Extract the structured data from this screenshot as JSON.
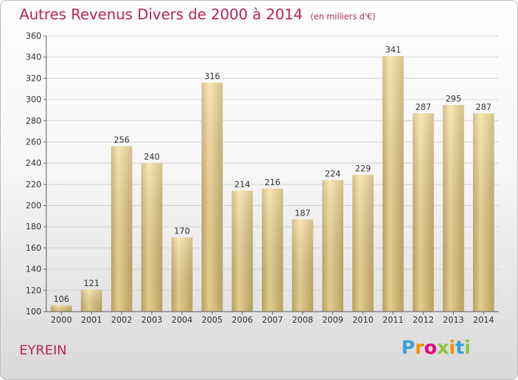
{
  "title": "Autres Revenus Divers de 2000 à 2014",
  "subtitle": "(en milliers d'€)",
  "place": "EYREIN",
  "logo": {
    "letters": [
      "P",
      "r",
      "o",
      "x",
      "i",
      "t",
      "i"
    ],
    "colors": [
      "#3aa0d8",
      "#f39200",
      "#e5007e",
      "#8cc63f",
      "#f39200",
      "#3aa0d8",
      "#8cc63f"
    ]
  },
  "chart_data": {
    "type": "bar",
    "categories": [
      "2000",
      "2001",
      "2002",
      "2003",
      "2004",
      "2005",
      "2006",
      "2007",
      "2008",
      "2009",
      "2010",
      "2011",
      "2012",
      "2013",
      "2014"
    ],
    "values": [
      106,
      121,
      256,
      240,
      170,
      316,
      214,
      216,
      187,
      224,
      229,
      341,
      287,
      295,
      287
    ],
    "ylim": [
      100,
      360
    ],
    "yticks": [
      100,
      120,
      140,
      160,
      180,
      200,
      220,
      240,
      260,
      280,
      300,
      320,
      340,
      360
    ],
    "grid": true,
    "colors": {
      "bar_light": "#f7df9a",
      "bar_dark": "#c7ae6a",
      "grid": "#d0d0d0"
    }
  }
}
